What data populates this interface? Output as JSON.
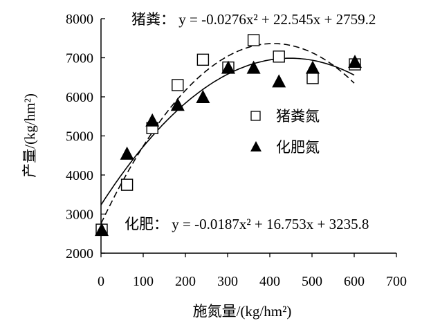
{
  "chart_data": {
    "type": "scatter",
    "title": "",
    "xlabel": "施氮量/(kg/hm²)",
    "ylabel": "产量/(kg/hm²)",
    "xlim": [
      0,
      700
    ],
    "ylim": [
      2000,
      8000
    ],
    "x_ticks": [
      0,
      100,
      200,
      300,
      400,
      500,
      600,
      700
    ],
    "y_ticks": [
      2000,
      3000,
      4000,
      5000,
      6000,
      7000,
      8000
    ],
    "grid": false,
    "legend_position": "middle-right",
    "series": [
      {
        "name": "猪粪氮",
        "marker": "open-square",
        "x": [
          0,
          60,
          120,
          180,
          240,
          300,
          360,
          420,
          500,
          600
        ],
        "y": [
          2600,
          3750,
          5200,
          6300,
          6950,
          6750,
          7450,
          7030,
          6480,
          6830
        ],
        "fit": {
          "a": -0.0276,
          "b": 22.545,
          "c": 2759.2,
          "style": "dashed"
        },
        "equation": {
          "prefix": "猪粪：",
          "text": "y = -0.0276x² + 22.545x + 2759.2"
        }
      },
      {
        "name": "化肥氮",
        "marker": "filled-triangle",
        "x": [
          0,
          60,
          120,
          180,
          240,
          300,
          360,
          420,
          500,
          600
        ],
        "y": [
          2600,
          4550,
          5400,
          5800,
          6000,
          6750,
          6750,
          6400,
          6750,
          6900
        ],
        "fit": {
          "a": -0.0187,
          "b": 16.753,
          "c": 3235.8,
          "style": "solid"
        },
        "equation": {
          "prefix": "化肥：",
          "text": "y = -0.0187x² + 16.753x + 3235.8"
        }
      }
    ]
  }
}
